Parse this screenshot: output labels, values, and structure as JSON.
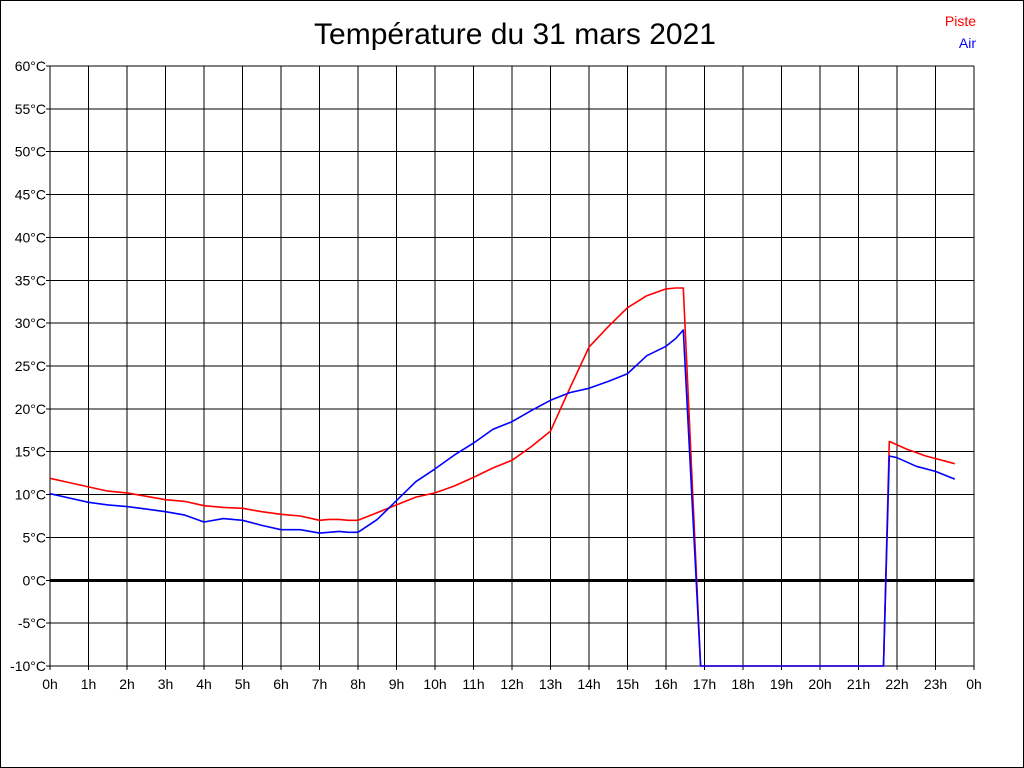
{
  "chart_data": {
    "type": "line",
    "title": "Température du 31 mars 2021",
    "xlabel": "",
    "ylabel": "",
    "ylim": [
      -10,
      60
    ],
    "yticks": [
      "60°C",
      "55°C",
      "50°C",
      "45°C",
      "40°C",
      "35°C",
      "30°C",
      "25°C",
      "20°C",
      "15°C",
      "10°C",
      "5°C",
      "0°C",
      "-5°C",
      "-10°C"
    ],
    "xticks": [
      "0h",
      "1h",
      "2h",
      "3h",
      "4h",
      "5h",
      "6h",
      "7h",
      "8h",
      "9h",
      "10h",
      "11h",
      "12h",
      "13h",
      "14h",
      "15h",
      "16h",
      "17h",
      "18h",
      "19h",
      "20h",
      "21h",
      "22h",
      "23h",
      "0h"
    ],
    "grid": true,
    "legend_position": "top-right",
    "series": [
      {
        "name": "Piste",
        "color": "#ff0000",
        "x": [
          0,
          0.5,
          1,
          1.5,
          2,
          2.5,
          3,
          3.5,
          4,
          4.5,
          5,
          5.5,
          6,
          6.5,
          7,
          7.25,
          7.5,
          7.75,
          8,
          8.5,
          9,
          9.5,
          10,
          10.5,
          11,
          11.5,
          12,
          12.5,
          13,
          13.5,
          14,
          14.5,
          15,
          15.5,
          16,
          16.25,
          16.45,
          16.9,
          17,
          18,
          19,
          20,
          21,
          21.65,
          21.8,
          22.25,
          22.75,
          23.5
        ],
        "y": [
          11.9,
          11.4,
          10.9,
          10.4,
          10.2,
          9.8,
          9.4,
          9.2,
          8.7,
          8.5,
          8.4,
          8.0,
          7.7,
          7.5,
          7.0,
          7.1,
          7.1,
          7.0,
          7.0,
          7.9,
          8.8,
          9.7,
          10.2,
          11.0,
          12.0,
          13.1,
          14.0,
          15.6,
          17.4,
          22.4,
          27.2,
          29.6,
          31.8,
          33.2,
          34.0,
          34.1,
          34.1,
          -10,
          -10,
          -10,
          -10,
          -10,
          -10,
          -10,
          16.2,
          15.3,
          14.5,
          13.6
        ]
      },
      {
        "name": "Air",
        "color": "#0000ff",
        "x": [
          0,
          0.5,
          1,
          1.5,
          2,
          2.5,
          3,
          3.5,
          4,
          4.5,
          5,
          5.5,
          6,
          6.5,
          7,
          7.25,
          7.5,
          7.75,
          8,
          8.5,
          9,
          9.5,
          10,
          10.5,
          11,
          11.5,
          12,
          12.5,
          13,
          13.5,
          14,
          14.5,
          15,
          15.5,
          16,
          16.25,
          16.45,
          16.9,
          17,
          18,
          19,
          20,
          21,
          21.65,
          21.8,
          22,
          22.5,
          23,
          23.5
        ],
        "y": [
          10.1,
          9.6,
          9.1,
          8.8,
          8.6,
          8.3,
          8.0,
          7.6,
          6.8,
          7.2,
          7.0,
          6.4,
          5.9,
          5.9,
          5.5,
          5.6,
          5.7,
          5.6,
          5.6,
          7.1,
          9.3,
          11.5,
          13.0,
          14.6,
          16.0,
          17.6,
          18.5,
          19.8,
          21.0,
          21.9,
          22.4,
          23.2,
          24.1,
          26.2,
          27.3,
          28.2,
          29.2,
          -10,
          -10,
          -10,
          -10,
          -10,
          -10,
          -10,
          14.5,
          14.3,
          13.3,
          12.7,
          11.8
        ]
      }
    ]
  }
}
